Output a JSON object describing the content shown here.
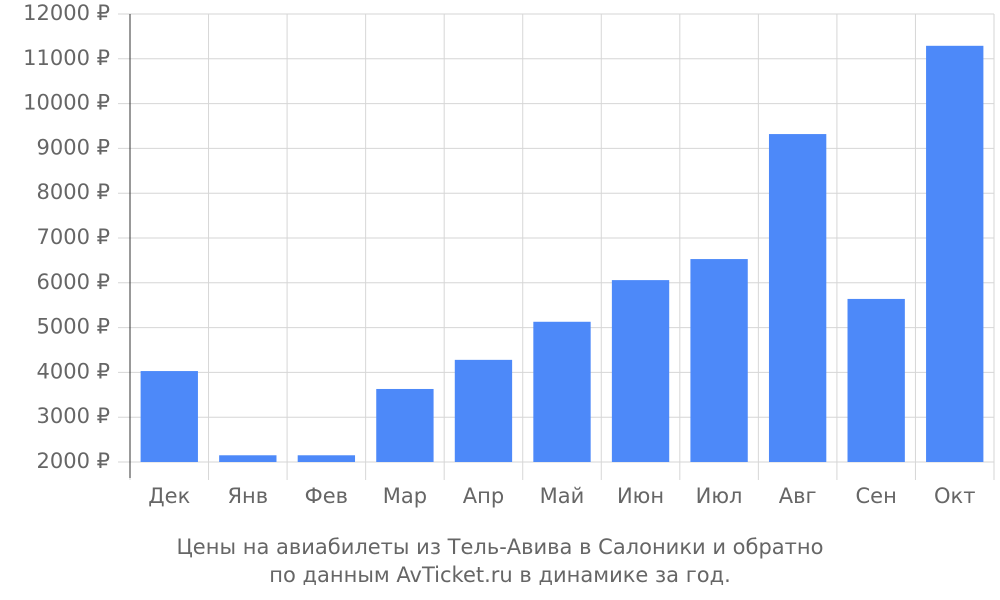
{
  "chart_data": {
    "type": "bar",
    "caption": [
      "Цены на авиабилеты из Тель-Авива в Салоники и обратно",
      "по данным AvTicket.ru в динамике за год."
    ],
    "categories": [
      "Дек",
      "Янв",
      "Фев",
      "Мар",
      "Апр",
      "Май",
      "Июн",
      "Июл",
      "Авг",
      "Сен",
      "Окт"
    ],
    "values": [
      4030,
      2150,
      2150,
      3630,
      4280,
      5130,
      6060,
      6530,
      9320,
      5640,
      11290
    ],
    "color": "#4d89f9",
    "ylim": [
      2000,
      12000
    ],
    "yticks": [
      {
        "value": 2000,
        "label": "2000 ₽"
      },
      {
        "value": 3000,
        "label": "3000 ₽"
      },
      {
        "value": 4000,
        "label": "4000 ₽"
      },
      {
        "value": 5000,
        "label": "5000 ₽"
      },
      {
        "value": 6000,
        "label": "6000 ₽"
      },
      {
        "value": 7000,
        "label": "7000 ₽"
      },
      {
        "value": 8000,
        "label": "8000 ₽"
      },
      {
        "value": 9000,
        "label": "9000 ₽"
      },
      {
        "value": 10000,
        "label": "10000 ₽"
      },
      {
        "value": 11000,
        "label": "11000 ₽"
      },
      {
        "value": 12000,
        "label": "12000 ₽"
      }
    ],
    "grid": true
  }
}
